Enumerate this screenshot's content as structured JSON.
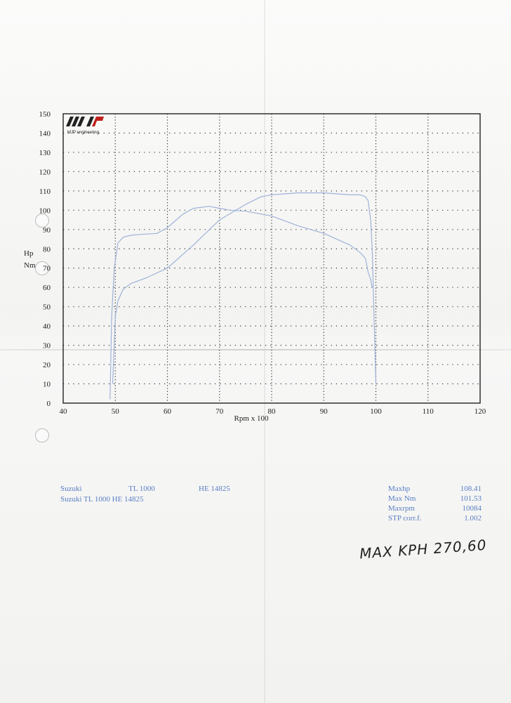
{
  "logo": {
    "text": "MJP engineering"
  },
  "chart_data": {
    "type": "line",
    "xlabel": "Rpm x 100",
    "ylabel": "Hp\nNm",
    "xlim": [
      40,
      120
    ],
    "ylim": [
      0,
      150
    ],
    "x_ticks": [
      40,
      50,
      60,
      70,
      80,
      90,
      100,
      110,
      120
    ],
    "y_ticks": [
      0,
      10,
      20,
      30,
      40,
      50,
      60,
      70,
      80,
      90,
      100,
      110,
      120,
      130,
      140,
      150
    ],
    "grid": true,
    "series": [
      {
        "x": [
          49,
          49.3,
          49.8,
          50.5,
          51.5,
          53,
          55,
          58,
          60,
          63,
          65,
          68,
          70,
          72,
          75,
          80,
          85,
          90,
          95,
          97,
          98,
          98.5,
          99,
          99.3
        ],
        "y": [
          2,
          45,
          70,
          83,
          86,
          87,
          87.5,
          88,
          91,
          98,
          101,
          102,
          101,
          100,
          99.5,
          97,
          92,
          88,
          82,
          78,
          75,
          68,
          64,
          60
        ],
        "color": "#9fb3d9"
      },
      {
        "x": [
          49.5,
          50,
          50.5,
          51.5,
          53,
          56,
          60,
          65,
          70,
          75,
          78,
          80,
          85,
          90,
          95,
          97,
          98,
          98.5,
          99,
          99.3,
          99.6,
          100
        ],
        "y": [
          10,
          45,
          53,
          59,
          62,
          65,
          70,
          82,
          95,
          103,
          107,
          108,
          109,
          109,
          108,
          108,
          107,
          105,
          95,
          80,
          50,
          10
        ],
        "color": "#9fb3d9"
      }
    ]
  },
  "info": {
    "line1": [
      "Suzuki",
      "TL 1000",
      "HE 14825"
    ],
    "line2": "Suzuki TL 1000 HE 14825"
  },
  "stats": [
    {
      "label": "Maxhp",
      "value": "108.41"
    },
    {
      "label": "Max Nm",
      "value": "101.53"
    },
    {
      "label": "Maxrpm",
      "value": "10084"
    },
    {
      "label": "STP corr.f.",
      "value": "1.002"
    }
  ],
  "handwritten": "MAX KPH 270,60",
  "colors": {
    "curve": "#9fb3d9",
    "text_blue": "#5a7fc4",
    "grid": "#333333"
  }
}
